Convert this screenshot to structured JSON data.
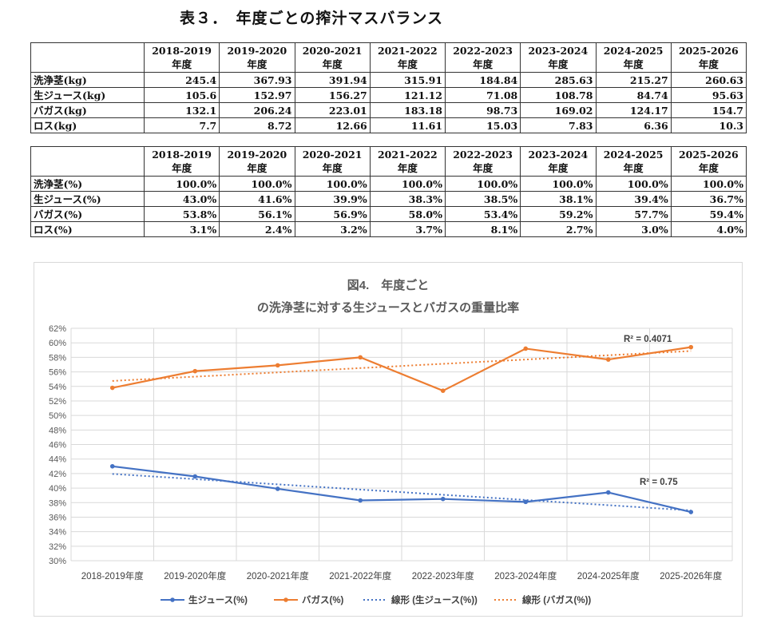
{
  "title": "表３．　年度ごとの搾汁マスバランス",
  "years": [
    "2018-2019",
    "2019-2020",
    "2020-2021",
    "2021-2022",
    "2022-2023",
    "2023-2024",
    "2024-2025",
    "2025-2026"
  ],
  "year_suffix": "年度",
  "table_kg": {
    "rows": [
      {
        "label": "洗浄茎(kg)",
        "values": [
          "245.4",
          "367.93",
          "391.94",
          "315.91",
          "184.84",
          "285.63",
          "215.27",
          "260.63"
        ]
      },
      {
        "label": "生ジュース(kg)",
        "values": [
          "105.6",
          "152.97",
          "156.27",
          "121.12",
          "71.08",
          "108.78",
          "84.74",
          "95.63"
        ]
      },
      {
        "label": "バガス(kg)",
        "values": [
          "132.1",
          "206.24",
          "223.01",
          "183.18",
          "98.73",
          "169.02",
          "124.17",
          "154.7"
        ]
      },
      {
        "label": "ロス(kg)",
        "values": [
          "7.7",
          "8.72",
          "12.66",
          "11.61",
          "15.03",
          "7.83",
          "6.36",
          "10.3"
        ]
      }
    ]
  },
  "table_pct": {
    "rows": [
      {
        "label": "洗浄茎(%)",
        "values": [
          "100.0%",
          "100.0%",
          "100.0%",
          "100.0%",
          "100.0%",
          "100.0%",
          "100.0%",
          "100.0%"
        ]
      },
      {
        "label": "生ジュース(%)",
        "values": [
          "43.0%",
          "41.6%",
          "39.9%",
          "38.3%",
          "38.5%",
          "38.1%",
          "39.4%",
          "36.7%"
        ]
      },
      {
        "label": "バガス(%)",
        "values": [
          "53.8%",
          "56.1%",
          "56.9%",
          "58.0%",
          "53.4%",
          "59.2%",
          "57.7%",
          "59.4%"
        ]
      },
      {
        "label": "ロス(%)",
        "values": [
          "3.1%",
          "2.4%",
          "3.2%",
          "3.7%",
          "8.1%",
          "2.7%",
          "3.0%",
          "4.0%"
        ]
      }
    ]
  },
  "chart_data": {
    "type": "line",
    "title": [
      "図4.　年度ごと",
      "の洗浄茎に対する生ジュースとバガスの重量比率"
    ],
    "categories": [
      "2018-2019年度",
      "2019-2020年度",
      "2020-2021年度",
      "2021-2022年度",
      "2022-2023年度",
      "2023-2024年度",
      "2024-2025年度",
      "2025-2026年度"
    ],
    "ylim": [
      30,
      62
    ],
    "ystep": 2,
    "yformat": "%",
    "grid": true,
    "legend_position": "bottom",
    "series": [
      {
        "name": "生ジュース(%)",
        "color": "#4472c4",
        "values": [
          43.0,
          41.6,
          39.9,
          38.3,
          38.5,
          38.1,
          39.4,
          36.7
        ]
      },
      {
        "name": "バガス(%)",
        "color": "#ed7d31",
        "values": [
          53.8,
          56.1,
          56.9,
          58.0,
          53.4,
          59.2,
          57.7,
          59.4
        ]
      }
    ],
    "trendlines": [
      {
        "name": "線形 (生ジュース(%))",
        "series": 0,
        "color": "#4472c4",
        "r2_label": "R² = 0.75"
      },
      {
        "name": "線形 (バガス(%))",
        "series": 1,
        "color": "#ed7d31",
        "r2_label": "R² = 0.4071"
      }
    ]
  }
}
